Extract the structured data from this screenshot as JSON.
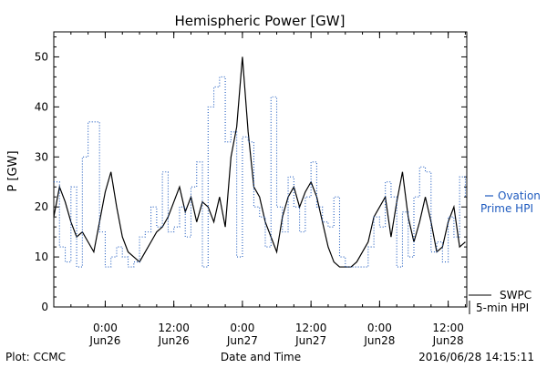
{
  "chart_data": {
    "type": "line",
    "title": "Hemispheric Power [GW]",
    "xlabel": "Date and Time",
    "ylabel": "P [GW]",
    "ylim": [
      0,
      55
    ],
    "xlim": [
      "2016-06-25T15:00",
      "2016-06-28T15:15"
    ],
    "y_ticks": [
      0,
      10,
      20,
      30,
      40,
      50
    ],
    "x_ticks": [
      {
        "t": "2016-06-26T00:00",
        "time": "0:00",
        "date": "Jun26"
      },
      {
        "t": "2016-06-26T12:00",
        "time": "12:00",
        "date": "Jun26"
      },
      {
        "t": "2016-06-27T00:00",
        "time": "0:00",
        "date": "Jun27"
      },
      {
        "t": "2016-06-27T12:00",
        "time": "12:00",
        "date": "Jun27"
      },
      {
        "t": "2016-06-28T00:00",
        "time": "0:00",
        "date": "Jun28"
      },
      {
        "t": "2016-06-28T12:00",
        "time": "12:00",
        "date": "Jun28"
      }
    ],
    "grid": false,
    "legend_placement": "right",
    "series": [
      {
        "name": "SWPC 5-min HPI",
        "color": "#000000",
        "style": "solid",
        "x": [
          "2016-06-25T15:00",
          "2016-06-25T16:00",
          "2016-06-25T17:00",
          "2016-06-25T18:00",
          "2016-06-25T19:00",
          "2016-06-25T20:00",
          "2016-06-25T21:00",
          "2016-06-25T22:00",
          "2016-06-25T23:00",
          "2016-06-26T00:00",
          "2016-06-26T01:00",
          "2016-06-26T02:00",
          "2016-06-26T03:00",
          "2016-06-26T04:00",
          "2016-06-26T05:00",
          "2016-06-26T06:00",
          "2016-06-26T07:00",
          "2016-06-26T08:00",
          "2016-06-26T09:00",
          "2016-06-26T10:00",
          "2016-06-26T11:00",
          "2016-06-26T12:00",
          "2016-06-26T13:00",
          "2016-06-26T14:00",
          "2016-06-26T15:00",
          "2016-06-26T16:00",
          "2016-06-26T17:00",
          "2016-06-26T18:00",
          "2016-06-26T19:00",
          "2016-06-26T20:00",
          "2016-06-26T21:00",
          "2016-06-26T22:00",
          "2016-06-26T23:00",
          "2016-06-27T00:00",
          "2016-06-27T01:00",
          "2016-06-27T02:00",
          "2016-06-27T03:00",
          "2016-06-27T04:00",
          "2016-06-27T05:00",
          "2016-06-27T06:00",
          "2016-06-27T07:00",
          "2016-06-27T08:00",
          "2016-06-27T09:00",
          "2016-06-27T10:00",
          "2016-06-27T11:00",
          "2016-06-27T12:00",
          "2016-06-27T13:00",
          "2016-06-27T14:00",
          "2016-06-27T15:00",
          "2016-06-27T16:00",
          "2016-06-27T17:00",
          "2016-06-27T18:00",
          "2016-06-27T19:00",
          "2016-06-27T20:00",
          "2016-06-27T21:00",
          "2016-06-27T22:00",
          "2016-06-27T23:00",
          "2016-06-28T00:00",
          "2016-06-28T01:00",
          "2016-06-28T02:00",
          "2016-06-28T03:00",
          "2016-06-28T04:00",
          "2016-06-28T05:00",
          "2016-06-28T06:00",
          "2016-06-28T07:00",
          "2016-06-28T08:00",
          "2016-06-28T09:00",
          "2016-06-28T10:00",
          "2016-06-28T11:00",
          "2016-06-28T12:00",
          "2016-06-28T13:00",
          "2016-06-28T14:00",
          "2016-06-28T15:00"
        ],
        "y": [
          18,
          24,
          21,
          17,
          14,
          15,
          13,
          11,
          17,
          23,
          27,
          20,
          14,
          11,
          10,
          9,
          11,
          13,
          15,
          16,
          18,
          21,
          24,
          19,
          22,
          17,
          21,
          20,
          17,
          22,
          16,
          30,
          36,
          50,
          35,
          24,
          22,
          17,
          14,
          11,
          18,
          22,
          24,
          20,
          23,
          25,
          22,
          17,
          12,
          9,
          8,
          8,
          8,
          9,
          11,
          13,
          18,
          20,
          22,
          14,
          21,
          27,
          18,
          13,
          17,
          22,
          17,
          11,
          12,
          17,
          20,
          12,
          13
        ]
      },
      {
        "name": "Ovation Prime HPI",
        "color": "#1f5bbf",
        "style": "dotted-step",
        "x": [
          "2016-06-25T15:00",
          "2016-06-25T16:00",
          "2016-06-25T17:00",
          "2016-06-25T18:00",
          "2016-06-25T19:00",
          "2016-06-25T20:00",
          "2016-06-25T21:00",
          "2016-06-25T22:00",
          "2016-06-25T23:00",
          "2016-06-26T00:00",
          "2016-06-26T01:00",
          "2016-06-26T02:00",
          "2016-06-26T03:00",
          "2016-06-26T04:00",
          "2016-06-26T05:00",
          "2016-06-26T06:00",
          "2016-06-26T07:00",
          "2016-06-26T08:00",
          "2016-06-26T09:00",
          "2016-06-26T10:00",
          "2016-06-26T11:00",
          "2016-06-26T12:00",
          "2016-06-26T13:00",
          "2016-06-26T14:00",
          "2016-06-26T15:00",
          "2016-06-26T16:00",
          "2016-06-26T17:00",
          "2016-06-26T18:00",
          "2016-06-26T19:00",
          "2016-06-26T20:00",
          "2016-06-26T21:00",
          "2016-06-26T22:00",
          "2016-06-26T23:00",
          "2016-06-27T00:00",
          "2016-06-27T01:00",
          "2016-06-27T02:00",
          "2016-06-27T03:00",
          "2016-06-27T04:00",
          "2016-06-27T05:00",
          "2016-06-27T06:00",
          "2016-06-27T07:00",
          "2016-06-27T08:00",
          "2016-06-27T09:00",
          "2016-06-27T10:00",
          "2016-06-27T11:00",
          "2016-06-27T12:00",
          "2016-06-27T13:00",
          "2016-06-27T14:00",
          "2016-06-27T15:00",
          "2016-06-27T16:00",
          "2016-06-27T17:00",
          "2016-06-27T18:00",
          "2016-06-27T19:00",
          "2016-06-27T20:00",
          "2016-06-27T21:00",
          "2016-06-27T22:00",
          "2016-06-27T23:00",
          "2016-06-28T00:00",
          "2016-06-28T01:00",
          "2016-06-28T02:00",
          "2016-06-28T03:00",
          "2016-06-28T04:00",
          "2016-06-28T05:00",
          "2016-06-28T06:00",
          "2016-06-28T07:00",
          "2016-06-28T08:00",
          "2016-06-28T09:00",
          "2016-06-28T10:00",
          "2016-06-28T11:00",
          "2016-06-28T12:00",
          "2016-06-28T13:00",
          "2016-06-28T14:00",
          "2016-06-28T15:00"
        ],
        "y": [
          25,
          12,
          9,
          24,
          8,
          30,
          37,
          37,
          15,
          8,
          10,
          12,
          10,
          8,
          9,
          14,
          15,
          20,
          16,
          27,
          15,
          16,
          20,
          14,
          24,
          29,
          8,
          40,
          44,
          46,
          33,
          35,
          10,
          34,
          33,
          20,
          18,
          12,
          42,
          20,
          15,
          26,
          20,
          15,
          22,
          29,
          20,
          17,
          16,
          22,
          10,
          8,
          8,
          8,
          8,
          12,
          18,
          16,
          25,
          22,
          8,
          19,
          10,
          22,
          28,
          27,
          11,
          13,
          9,
          18,
          14,
          26,
          22
        ]
      }
    ],
    "title_text": "Hemispheric Power [GW]",
    "legend": {
      "ovation_line1": "Ovation",
      "ovation_line2": "Prime HPI",
      "swpc_line1": "SWPC",
      "swpc_line2": "5-min HPI"
    },
    "footer": {
      "left": "Plot: CCMC",
      "center": "Date and Time",
      "right": "2016/06/28 14:15:11"
    }
  }
}
